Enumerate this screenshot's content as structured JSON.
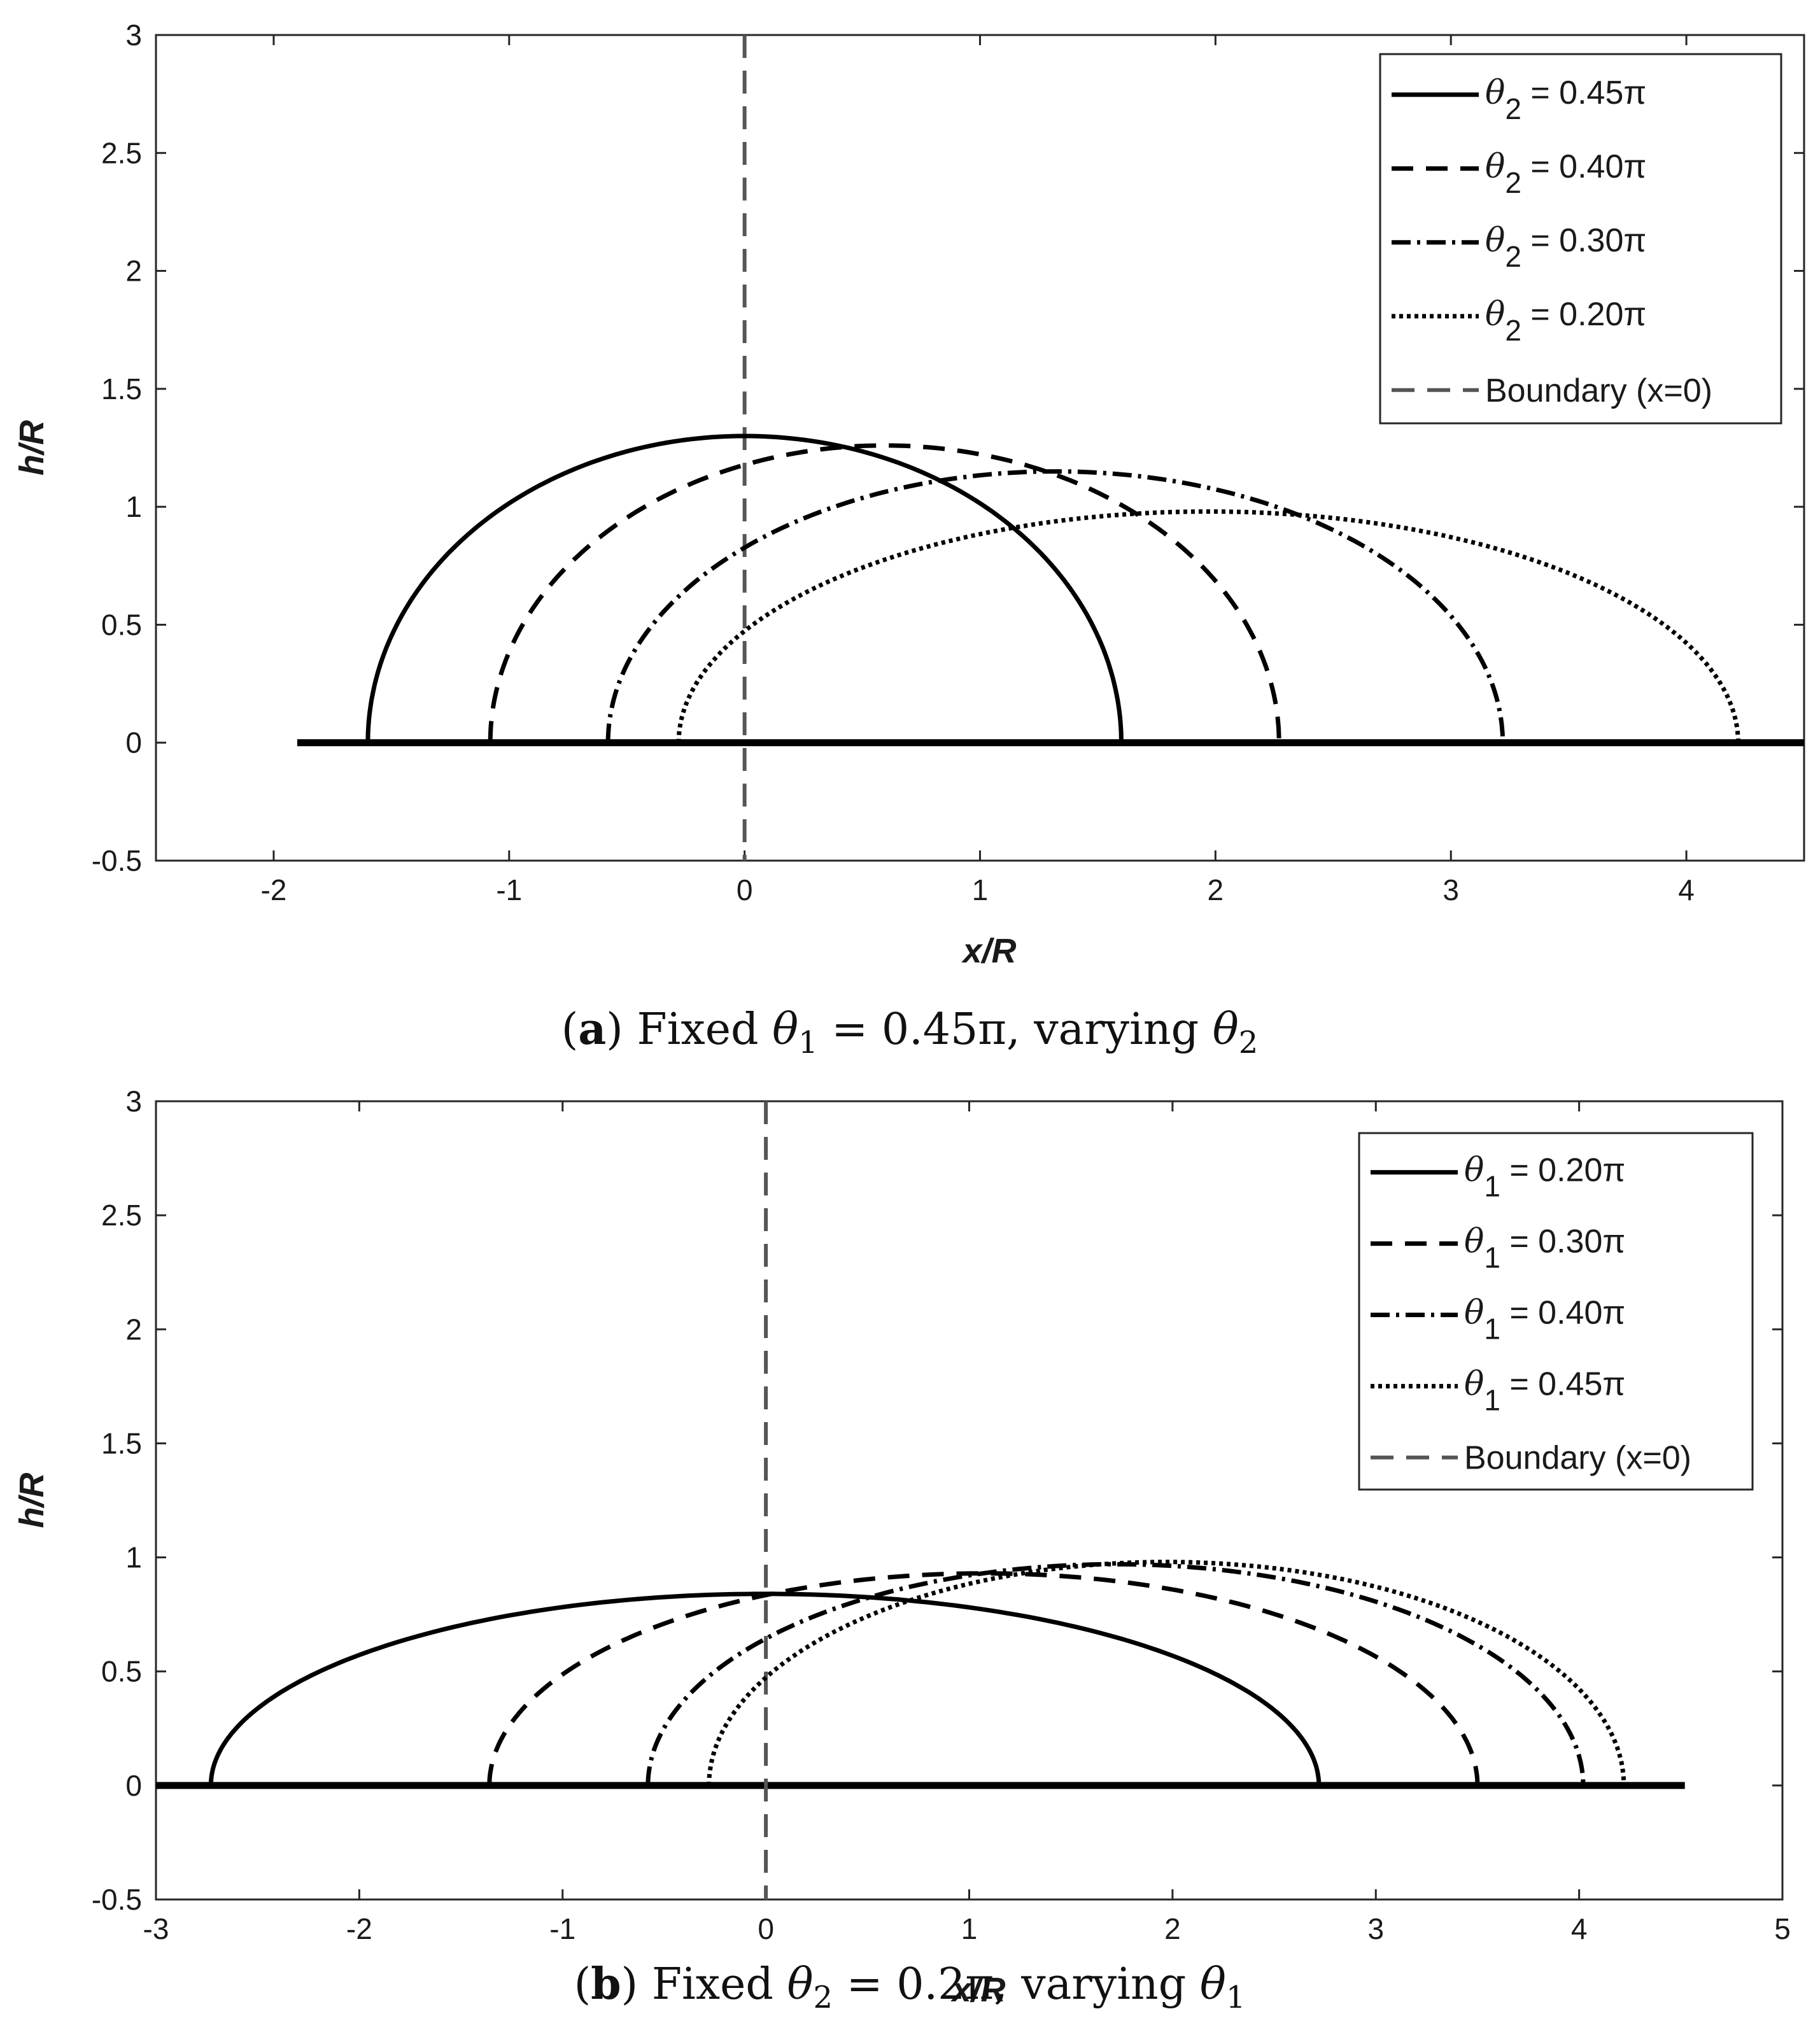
{
  "chart_data": [
    {
      "type": "line",
      "caption": {
        "label": "a",
        "prefix": "Fixed",
        "fixed_symbol": "θ",
        "fixed_sub": "1",
        "fixed_value": "0.45π",
        "middle": ", varying",
        "varying_symbol": "θ",
        "varying_sub": "2"
      },
      "xlabel": "x/R",
      "ylabel": "h/R",
      "xlim": [
        -2.5,
        4.5
      ],
      "ylim": [
        -0.5,
        3
      ],
      "xticks": [
        "-2",
        "-1",
        "0",
        "1",
        "2",
        "3",
        "4"
      ],
      "yticks": [
        "-0.5",
        "0",
        "0.5",
        "1",
        "1.5",
        "2",
        "2.5",
        "3"
      ],
      "grid": false,
      "legend_position": "top-right",
      "substrate": {
        "x_start": -1.9,
        "x_end": 4.5,
        "y": 0
      },
      "boundary": {
        "x": 0,
        "label": "Boundary (x=0)",
        "color": "#555555"
      },
      "series": [
        {
          "symbol": "θ",
          "sub": "2",
          "value": "= 0.45π",
          "style": "solid",
          "x_left": -1.6,
          "x_right": 1.6,
          "h": 1.3
        },
        {
          "symbol": "θ",
          "sub": "2",
          "value": "= 0.40π",
          "style": "dashed",
          "x_left": -1.08,
          "x_right": 2.27,
          "h": 1.26
        },
        {
          "symbol": "θ",
          "sub": "2",
          "value": "= 0.30π",
          "style": "dashdot",
          "x_left": -0.58,
          "x_right": 3.22,
          "h": 1.15
        },
        {
          "symbol": "θ",
          "sub": "2",
          "value": "= 0.20π",
          "style": "dotted",
          "x_left": -0.28,
          "x_right": 4.22,
          "h": 0.98
        }
      ]
    },
    {
      "type": "line",
      "caption": {
        "label": "b",
        "prefix": "Fixed",
        "fixed_symbol": "θ",
        "fixed_sub": "2",
        "fixed_value": "0.2π",
        "middle": ", varying",
        "varying_symbol": "θ",
        "varying_sub": "1"
      },
      "xlabel": "x/R",
      "ylabel": "h/R",
      "xlim": [
        -3,
        5
      ],
      "ylim": [
        -0.5,
        3
      ],
      "xticks": [
        "-3",
        "-2",
        "-1",
        "0",
        "1",
        "2",
        "3",
        "4",
        "5"
      ],
      "yticks": [
        "-0.5",
        "0",
        "0.5",
        "1",
        "1.5",
        "2",
        "2.5",
        "3"
      ],
      "grid": false,
      "legend_position": "top-right",
      "substrate": {
        "x_start": -3,
        "x_end": 4.52,
        "y": 0
      },
      "boundary": {
        "x": 0,
        "label": "Boundary (x=0)",
        "color": "#555555"
      },
      "series": [
        {
          "symbol": "θ",
          "sub": "1",
          "value": "= 0.20π",
          "style": "solid",
          "x_left": -2.73,
          "x_right": 2.72,
          "h": 0.84
        },
        {
          "symbol": "θ",
          "sub": "1",
          "value": "= 0.30π",
          "style": "dashed",
          "x_left": -1.36,
          "x_right": 3.5,
          "h": 0.93
        },
        {
          "symbol": "θ",
          "sub": "1",
          "value": "= 0.40π",
          "style": "dashdot",
          "x_left": -0.58,
          "x_right": 4.02,
          "h": 0.97
        },
        {
          "symbol": "θ",
          "sub": "1",
          "value": "= 0.45π",
          "style": "dotted",
          "x_left": -0.28,
          "x_right": 4.22,
          "h": 0.98
        }
      ]
    }
  ]
}
